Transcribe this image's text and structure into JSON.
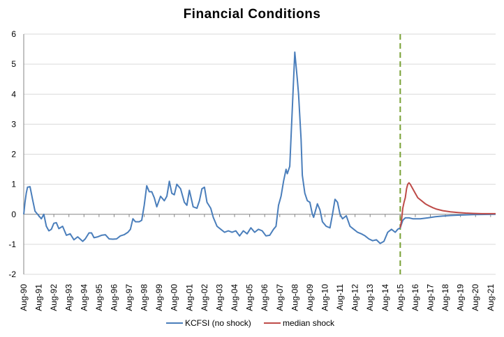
{
  "chart_data": {
    "type": "line",
    "title": "Financial Conditions",
    "xlabel": "",
    "ylabel": "",
    "ylim": [
      -2,
      6
    ],
    "y_ticks": [
      -2,
      -1,
      0,
      1,
      2,
      3,
      4,
      5,
      6
    ],
    "x_tick_labels": [
      "Aug-90",
      "Aug-91",
      "Aug-92",
      "Aug-93",
      "Aug-94",
      "Aug-95",
      "Aug-96",
      "Aug-97",
      "Aug-98",
      "Aug-99",
      "Aug-00",
      "Aug-01",
      "Aug-02",
      "Aug-03",
      "Aug-04",
      "Aug-05",
      "Aug-06",
      "Aug-07",
      "Aug-08",
      "Aug-09",
      "Aug-10",
      "Aug-11",
      "Aug-12",
      "Aug-13",
      "Aug-14",
      "Aug-15",
      "Aug-16",
      "Aug-17",
      "Aug-18",
      "Aug-19",
      "Aug-20",
      "Aug-21"
    ],
    "x_start": "1990-08",
    "x_end": "2021-12",
    "grid": "horizontal",
    "legend_position": "bottom",
    "shock_date": "2015-08",
    "colors": {
      "kcfsi": "#4a7ebb",
      "shock": "#be4b48",
      "shock_line": "#77a033",
      "grid": "#d9d9d9",
      "axis": "#868686"
    },
    "series": [
      {
        "name": "KCFSI (no shock)",
        "color": "#4a7ebb",
        "points": [
          [
            "1990-08",
            0.0
          ],
          [
            "1990-09",
            0.4
          ],
          [
            "1990-10",
            0.7
          ],
          [
            "1990-11",
            0.9
          ],
          [
            "1991-01",
            0.92
          ],
          [
            "1991-03",
            0.5
          ],
          [
            "1991-05",
            0.1
          ],
          [
            "1991-08",
            -0.05
          ],
          [
            "1991-10",
            -0.15
          ],
          [
            "1991-12",
            0.0
          ],
          [
            "1992-02",
            -0.4
          ],
          [
            "1992-04",
            -0.55
          ],
          [
            "1992-06",
            -0.5
          ],
          [
            "1992-08",
            -0.3
          ],
          [
            "1992-10",
            -0.28
          ],
          [
            "1992-12",
            -0.48
          ],
          [
            "1993-03",
            -0.4
          ],
          [
            "1993-06",
            -0.7
          ],
          [
            "1993-09",
            -0.65
          ],
          [
            "1993-12",
            -0.85
          ],
          [
            "1994-03",
            -0.75
          ],
          [
            "1994-07",
            -0.9
          ],
          [
            "1994-09",
            -0.82
          ],
          [
            "1994-12",
            -0.62
          ],
          [
            "1995-02",
            -0.62
          ],
          [
            "1995-04",
            -0.78
          ],
          [
            "1995-07",
            -0.75
          ],
          [
            "1995-10",
            -0.7
          ],
          [
            "1996-01",
            -0.68
          ],
          [
            "1996-04",
            -0.82
          ],
          [
            "1996-07",
            -0.83
          ],
          [
            "1996-10",
            -0.82
          ],
          [
            "1997-01",
            -0.72
          ],
          [
            "1997-04",
            -0.68
          ],
          [
            "1997-07",
            -0.6
          ],
          [
            "1997-09",
            -0.5
          ],
          [
            "1997-11",
            -0.15
          ],
          [
            "1998-01",
            -0.25
          ],
          [
            "1998-04",
            -0.25
          ],
          [
            "1998-06",
            -0.2
          ],
          [
            "1998-08",
            0.3
          ],
          [
            "1998-10",
            0.95
          ],
          [
            "1998-12",
            0.75
          ],
          [
            "1999-02",
            0.75
          ],
          [
            "1999-04",
            0.55
          ],
          [
            "1999-06",
            0.25
          ],
          [
            "1999-09",
            0.6
          ],
          [
            "1999-12",
            0.45
          ],
          [
            "2000-02",
            0.6
          ],
          [
            "2000-04",
            1.1
          ],
          [
            "2000-06",
            0.7
          ],
          [
            "2000-08",
            0.65
          ],
          [
            "2000-10",
            1.0
          ],
          [
            "2001-01",
            0.85
          ],
          [
            "2001-04",
            0.4
          ],
          [
            "2001-06",
            0.3
          ],
          [
            "2001-08",
            0.8
          ],
          [
            "2001-11",
            0.25
          ],
          [
            "2002-02",
            0.2
          ],
          [
            "2002-04",
            0.45
          ],
          [
            "2002-06",
            0.85
          ],
          [
            "2002-08",
            0.9
          ],
          [
            "2002-10",
            0.4
          ],
          [
            "2003-01",
            0.2
          ],
          [
            "2003-03",
            -0.1
          ],
          [
            "2003-06",
            -0.4
          ],
          [
            "2003-09",
            -0.5
          ],
          [
            "2003-12",
            -0.6
          ],
          [
            "2004-03",
            -0.55
          ],
          [
            "2004-06",
            -0.6
          ],
          [
            "2004-09",
            -0.55
          ],
          [
            "2004-12",
            -0.72
          ],
          [
            "2005-03",
            -0.55
          ],
          [
            "2005-06",
            -0.65
          ],
          [
            "2005-09",
            -0.45
          ],
          [
            "2005-12",
            -0.6
          ],
          [
            "2006-03",
            -0.5
          ],
          [
            "2006-06",
            -0.55
          ],
          [
            "2006-09",
            -0.72
          ],
          [
            "2006-12",
            -0.7
          ],
          [
            "2007-03",
            -0.5
          ],
          [
            "2007-05",
            -0.4
          ],
          [
            "2007-07",
            0.3
          ],
          [
            "2007-09",
            0.6
          ],
          [
            "2007-11",
            1.1
          ],
          [
            "2008-01",
            1.5
          ],
          [
            "2008-02",
            1.35
          ],
          [
            "2008-04",
            1.6
          ],
          [
            "2008-06",
            3.5
          ],
          [
            "2008-08",
            5.4
          ],
          [
            "2008-10",
            4.5
          ],
          [
            "2008-11",
            4.0
          ],
          [
            "2009-01",
            2.5
          ],
          [
            "2009-02",
            1.3
          ],
          [
            "2009-04",
            0.7
          ],
          [
            "2009-06",
            0.45
          ],
          [
            "2009-08",
            0.4
          ],
          [
            "2009-10",
            0.0
          ],
          [
            "2009-11",
            -0.1
          ],
          [
            "2010-02",
            0.35
          ],
          [
            "2010-04",
            0.15
          ],
          [
            "2010-06",
            -0.25
          ],
          [
            "2010-09",
            -0.4
          ],
          [
            "2010-12",
            -0.45
          ],
          [
            "2011-02",
            0.0
          ],
          [
            "2011-04",
            0.5
          ],
          [
            "2011-06",
            0.4
          ],
          [
            "2011-08",
            0.0
          ],
          [
            "2011-10",
            -0.15
          ],
          [
            "2012-01",
            -0.05
          ],
          [
            "2012-04",
            -0.4
          ],
          [
            "2012-07",
            -0.5
          ],
          [
            "2012-10",
            -0.6
          ],
          [
            "2013-01",
            -0.65
          ],
          [
            "2013-04",
            -0.72
          ],
          [
            "2013-07",
            -0.82
          ],
          [
            "2013-10",
            -0.88
          ],
          [
            "2014-01",
            -0.85
          ],
          [
            "2014-04",
            -0.97
          ],
          [
            "2014-07",
            -0.9
          ],
          [
            "2014-10",
            -0.6
          ],
          [
            "2015-01",
            -0.5
          ],
          [
            "2015-04",
            -0.6
          ],
          [
            "2015-06",
            -0.5
          ],
          [
            "2015-08",
            -0.45
          ],
          [
            "2015-10",
            -0.2
          ],
          [
            "2015-12",
            -0.12
          ],
          [
            "2016-03",
            -0.12
          ],
          [
            "2016-06",
            -0.15
          ],
          [
            "2016-09",
            -0.15
          ],
          [
            "2016-12",
            -0.15
          ],
          [
            "2017-06",
            -0.12
          ],
          [
            "2017-12",
            -0.08
          ],
          [
            "2018-06",
            -0.06
          ],
          [
            "2018-12",
            -0.04
          ],
          [
            "2019-06",
            -0.03
          ],
          [
            "2019-12",
            -0.02
          ],
          [
            "2020-06",
            -0.01
          ],
          [
            "2021-12",
            0.0
          ]
        ]
      },
      {
        "name": "median shock",
        "color": "#be4b48",
        "points": [
          [
            "2015-08",
            -0.45
          ],
          [
            "2015-09",
            -0.2
          ],
          [
            "2015-10",
            0.2
          ],
          [
            "2015-11",
            0.4
          ],
          [
            "2015-12",
            0.55
          ],
          [
            "2016-01",
            0.85
          ],
          [
            "2016-02",
            1.0
          ],
          [
            "2016-03",
            1.05
          ],
          [
            "2016-04",
            1.0
          ],
          [
            "2016-06",
            0.85
          ],
          [
            "2016-08",
            0.7
          ],
          [
            "2016-10",
            0.55
          ],
          [
            "2017-01",
            0.45
          ],
          [
            "2017-04",
            0.35
          ],
          [
            "2017-07",
            0.28
          ],
          [
            "2017-10",
            0.22
          ],
          [
            "2018-01",
            0.17
          ],
          [
            "2018-06",
            0.12
          ],
          [
            "2018-12",
            0.08
          ],
          [
            "2019-06",
            0.06
          ],
          [
            "2019-12",
            0.04
          ],
          [
            "2020-06",
            0.03
          ],
          [
            "2021-01",
            0.02
          ],
          [
            "2021-12",
            0.02
          ]
        ]
      }
    ]
  }
}
